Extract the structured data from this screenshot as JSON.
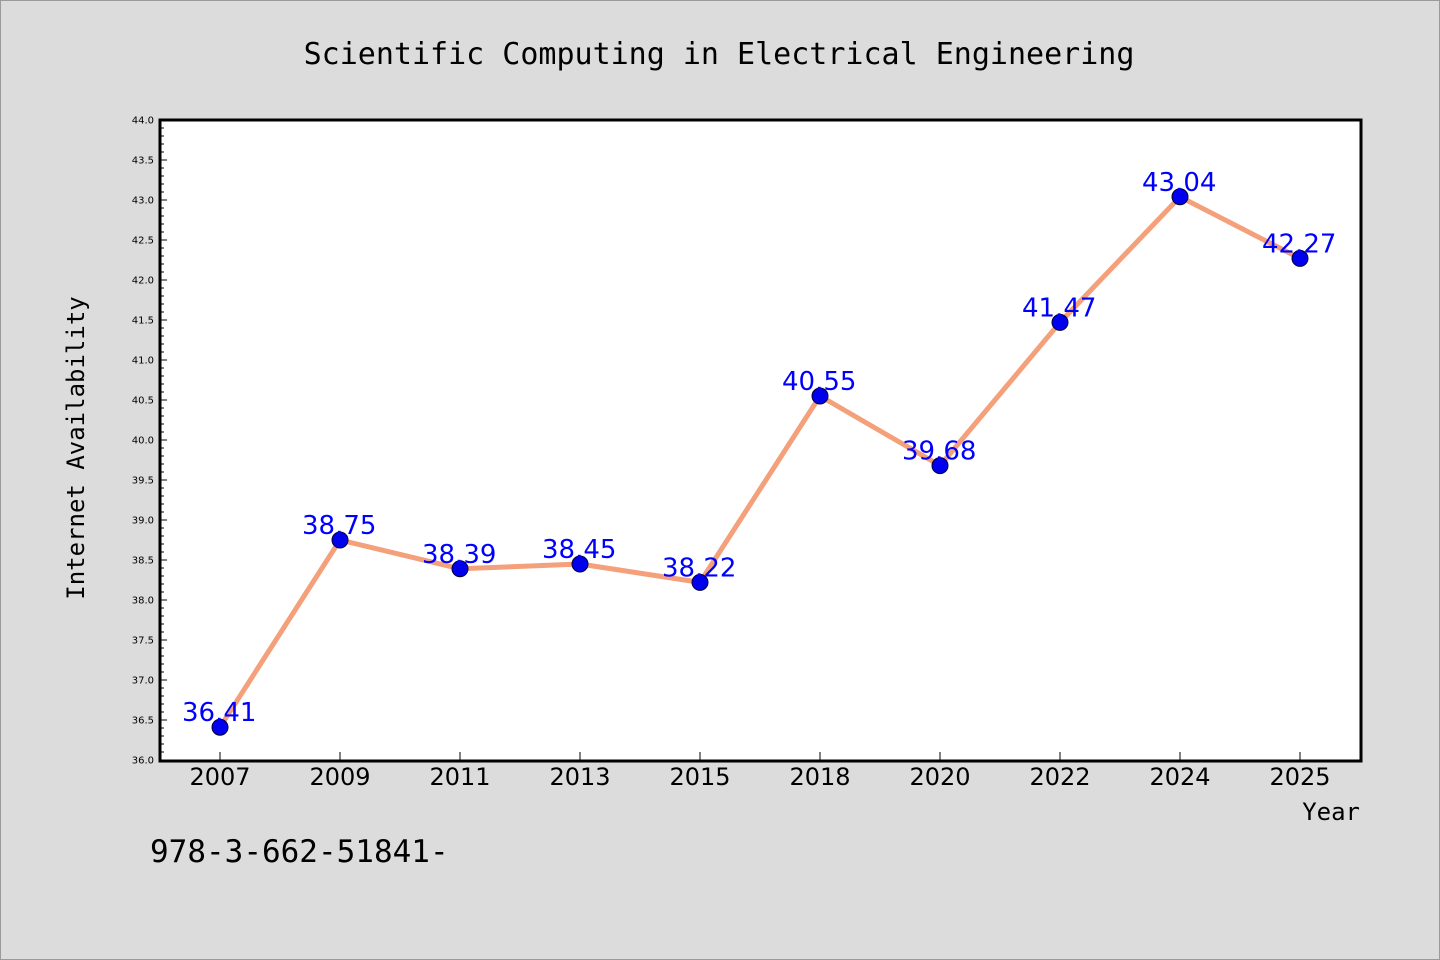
{
  "chart_data": {
    "type": "line",
    "title": "Scientific Computing in Electrical Engineering",
    "xlabel": "Year",
    "ylabel": "Internet Availability",
    "categories": [
      "2007",
      "2009",
      "2011",
      "2013",
      "2015",
      "2018",
      "2020",
      "2022",
      "2024",
      "2025"
    ],
    "series": [
      {
        "values": [
          36.41,
          38.75,
          38.39,
          38.45,
          38.22,
          40.55,
          39.68,
          41.47,
          43.04,
          42.27
        ]
      }
    ],
    "data_labels": [
      "36.41",
      "38.75",
      "38.39",
      "38.45",
      "38.22",
      "40.55",
      "39.68",
      "41.47",
      "43.04",
      "42.27"
    ],
    "ylim": [
      36.0,
      44.0
    ],
    "ytick_labels": [
      "36.0",
      "36.5",
      "37.0",
      "37.5",
      "38.0",
      "38.5",
      "39.0",
      "39.5",
      "40.0",
      "40.5",
      "41.0",
      "41.5",
      "42.0",
      "42.5",
      "43.0",
      "43.5",
      "44.0"
    ],
    "grid": false,
    "line_color": "#f4a07a",
    "marker_color": "#0000ee",
    "label_color": "#0000ff",
    "plot_background": "#ffffff",
    "figure_background": "#dcdcdc"
  },
  "footer": {
    "text": "978-3-662-51841-"
  }
}
